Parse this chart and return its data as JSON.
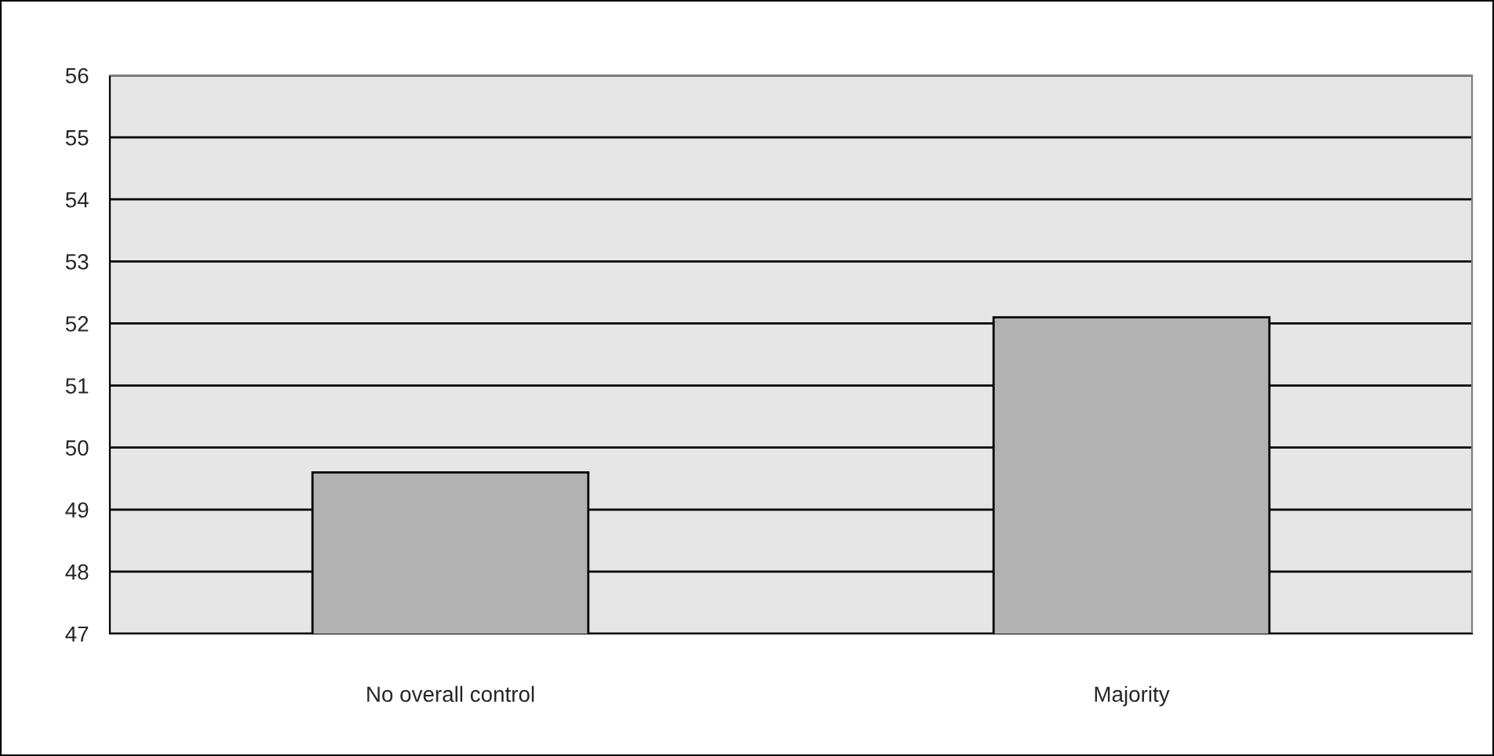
{
  "chart_data": {
    "type": "bar",
    "categories": [
      "No overall control",
      "Majority"
    ],
    "values": [
      49.6,
      52.1
    ],
    "color": "#b2b2b2",
    "ylim": [
      47,
      56
    ],
    "yticks": [
      47,
      48,
      49,
      50,
      51,
      52,
      53,
      54,
      55,
      56
    ],
    "grid": "y",
    "legend": false
  }
}
